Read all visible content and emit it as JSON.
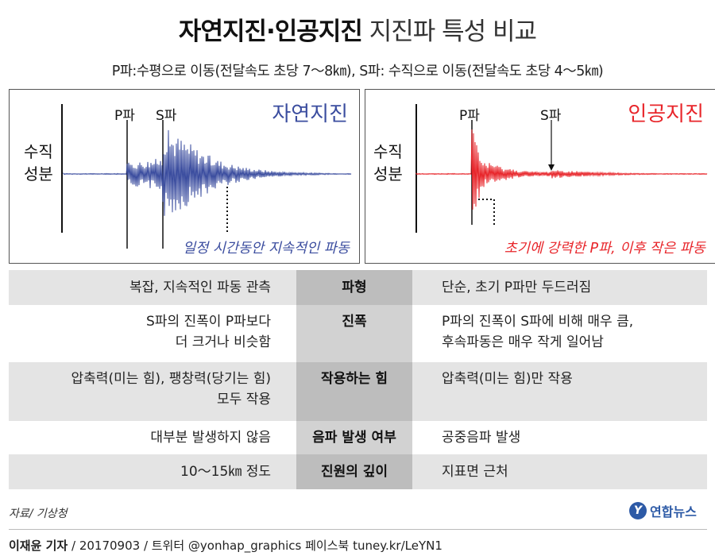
{
  "header": {
    "title_bold": "자연지진·인공지진",
    "title_rest": "지진파 특성 비교",
    "subtitle": "P파:수평으로 이동(전달속도 초당 7～8㎞), S파: 수직으로 이동(전달속도 초당 4～5㎞)"
  },
  "panels": {
    "natural": {
      "title": "자연지진",
      "axis_label_1": "수직",
      "axis_label_2": "성분",
      "p_label": "P파",
      "s_label": "S파",
      "note": "일정 시간동안 지속적인 파동",
      "color": "#3b4d9f"
    },
    "artificial": {
      "title": "인공지진",
      "axis_label_1": "수직",
      "axis_label_2": "성분",
      "p_label": "P파",
      "s_label": "S파",
      "note": "초기에 강력한 P파, 이후 작은 파동",
      "color": "#e8252a"
    }
  },
  "comparison": {
    "rows": [
      {
        "category": "파형",
        "natural": [
          "복잡, 지속적인 파동 관측"
        ],
        "artificial": [
          "단순, 초기 P파만 두드러짐"
        ]
      },
      {
        "category": "진폭",
        "natural": [
          "S파의 진폭이 P파보다",
          "더 크거나 비슷함"
        ],
        "artificial": [
          "P파의 진폭이 S파에 비해 매우 큼,",
          "후속파동은 매우 작게 일어남"
        ]
      },
      {
        "category": "작용하는 힘",
        "natural": [
          "압축력(미는 힘), 팽창력(당기는 힘)",
          "모두 작용"
        ],
        "artificial": [
          "압축력(미는 힘)만 작용"
        ]
      },
      {
        "category": "음파 발생 여부",
        "natural": [
          "대부분 발생하지 않음"
        ],
        "artificial": [
          "공중음파 발생"
        ]
      },
      {
        "category": "진원의 깊이",
        "natural": [
          "10～15㎞ 정도"
        ],
        "artificial": [
          "지표면 근처"
        ]
      }
    ]
  },
  "footer": {
    "source": "자료/ 기상청",
    "author": "이재윤 기자",
    "credit_rest": " / 20170903 / 트위터 @yonhap_graphics  페이스북 tuney.kr/LeYN1",
    "logo_text": "연합뉴스",
    "logo_mark": "Y"
  }
}
